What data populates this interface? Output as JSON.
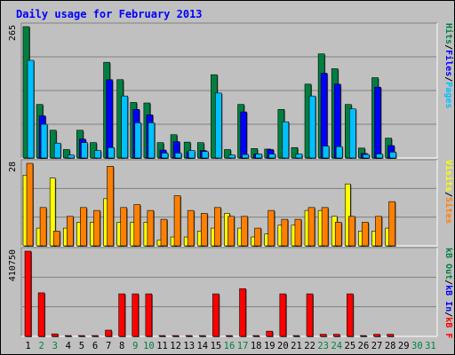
{
  "chart_data": {
    "type": "bar",
    "title": "Daily usage for February 2013",
    "colors": {
      "hits": "#008040",
      "files": "#0000ff",
      "pages": "#00c0ff",
      "visits": "#ffff00",
      "sites": "#ff8000",
      "kb_in": "#008040",
      "kb_out": "#0000ff",
      "kb_f": "#ff0000",
      "background": "#c0c0c0",
      "title": "#0000ff",
      "weekend_label": "#008040"
    },
    "x": {
      "categories": [
        "1",
        "2",
        "3",
        "4",
        "5",
        "6",
        "7",
        "8",
        "9",
        "10",
        "11",
        "12",
        "13",
        "14",
        "15",
        "16",
        "17",
        "18",
        "19",
        "20",
        "21",
        "22",
        "23",
        "24",
        "25",
        "26",
        "27",
        "28",
        "29",
        "30",
        "31"
      ],
      "weekend_days": [
        "2",
        "3",
        "9",
        "10",
        "16",
        "17",
        "23",
        "24",
        "30",
        "31"
      ]
    },
    "panels": [
      {
        "name": "hits-files-pages",
        "ymax_label": "265",
        "ylim": [
          0,
          265
        ],
        "legend": [
          {
            "text": "Pages",
            "color": "#00c0ff"
          },
          {
            "text": "/",
            "color": "#000000"
          },
          {
            "text": "Files",
            "color": "#0000ff"
          },
          {
            "text": "/",
            "color": "#000000"
          },
          {
            "text": "Hits",
            "color": "#008040"
          }
        ],
        "series": [
          {
            "name": "Hits",
            "color": "#008040",
            "values": [
              265,
              108,
              56,
              17,
              56,
              31,
              193,
              158,
              112,
              111,
              31,
              47,
              32,
              31,
              168,
              17,
              108,
              19,
              18,
              98,
              21,
              149,
              210,
              180,
              108,
              20,
              162,
              40,
              0,
              0,
              0
            ]
          },
          {
            "name": "Files",
            "color": "#0000ff",
            "values": [
              0,
              85,
              0,
              0,
              38,
              0,
              158,
              0,
              98,
              87,
              16,
              33,
              13,
              15,
              0,
              0,
              93,
              8,
              17,
              0,
              0,
              0,
              171,
              149,
              0,
              9,
              143,
              25,
              0,
              0,
              0
            ]
          },
          {
            "name": "Pages",
            "color": "#00c0ff",
            "values": [
              197,
              68,
              30,
              6,
              31,
              15,
              21,
              125,
              71,
              71,
              10,
              10,
              15,
              13,
              131,
              6,
              7,
              8,
              8,
              73,
              8,
              125,
              24,
              23,
              99,
              7,
              8,
              12,
              0,
              0,
              0
            ]
          }
        ]
      },
      {
        "name": "visits-sites",
        "ymax_label": "28",
        "ylim": [
          0,
          28
        ],
        "legend": [
          {
            "text": "Sites",
            "color": "#ff8000"
          },
          {
            "text": "/",
            "color": "#000000"
          },
          {
            "text": "Visits",
            "color": "#ffff00"
          }
        ],
        "series": [
          {
            "name": "Visits",
            "color": "#ffff00",
            "values": [
              24,
              6,
              23,
              6,
              8,
              8,
              16,
              8,
              8,
              8,
              2,
              3,
              3,
              5,
              6,
              11,
              6,
              3,
              4,
              7,
              7,
              12,
              12,
              10,
              21,
              5,
              5,
              6,
              0,
              0,
              0
            ]
          },
          {
            "name": "Sites",
            "color": "#ff8000",
            "values": [
              28,
              13,
              5,
              10,
              13,
              12,
              27,
              13,
              14,
              12,
              9,
              17,
              12,
              11,
              13,
              10,
              10,
              6,
              12,
              9,
              9,
              13,
              13,
              8,
              10,
              8,
              10,
              15,
              0,
              0,
              0
            ]
          }
        ]
      },
      {
        "name": "kbytes",
        "ymax_label": "410750",
        "ylim": [
          0,
          410750
        ],
        "legend": [
          {
            "text": "kB F",
            "color": "#ff0000"
          },
          {
            "text": "/",
            "color": "#000000"
          },
          {
            "text": "kB In",
            "color": "#0000ff"
          },
          {
            "text": "/",
            "color": "#000000"
          },
          {
            "text": "kB Out",
            "color": "#008040"
          }
        ],
        "series": [
          {
            "name": "kB F",
            "color": "#ff0000",
            "values": [
              410750,
              210000,
              12000,
              4000,
              4000,
              4000,
              30000,
              205000,
              205000,
              205000,
              4000,
              4000,
              4000,
              4000,
              205000,
              4000,
              230000,
              4000,
              25000,
              205000,
              4000,
              205000,
              10000,
              10000,
              205000,
              4000,
              10000,
              10000,
              0,
              0,
              0
            ]
          }
        ]
      }
    ]
  }
}
